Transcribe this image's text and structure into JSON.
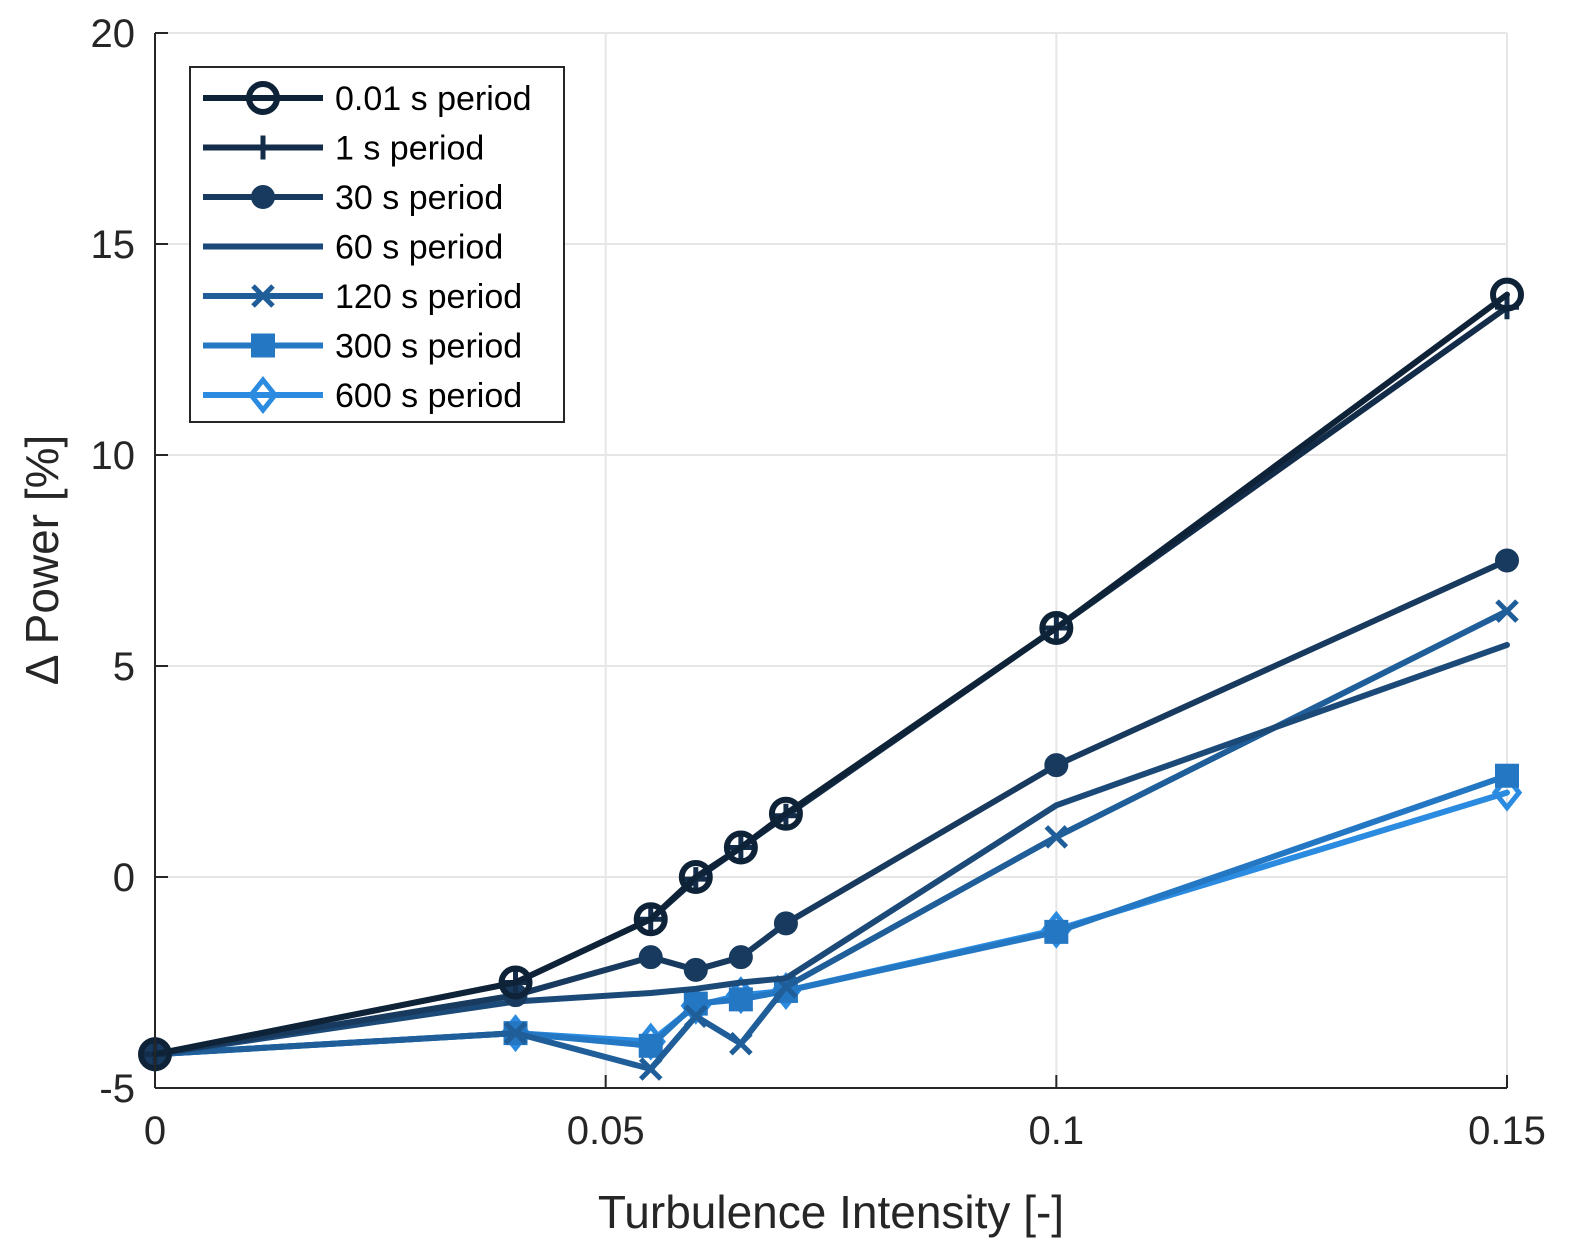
{
  "chart_data": {
    "type": "line",
    "title": "",
    "xlabel": "Turbulence Intensity [-]",
    "ylabel": "Δ Power [%]",
    "xlim": [
      0,
      0.15
    ],
    "ylim": [
      -5,
      20
    ],
    "xticks": [
      0,
      0.05,
      0.1,
      0.15
    ],
    "xtick_labels": [
      "0",
      "0.05",
      "0.1",
      "0.15"
    ],
    "yticks": [
      -5,
      0,
      5,
      10,
      15,
      20
    ],
    "ytick_labels": [
      "-5",
      "0",
      "5",
      "10",
      "15",
      "20"
    ],
    "grid": true,
    "legend_position": "top-left",
    "x": [
      0,
      0.04,
      0.055,
      0.06,
      0.065,
      0.07,
      0.1,
      0.15
    ],
    "series": [
      {
        "name": "0.01 s period",
        "color": "#0f2338",
        "marker": "circle-open",
        "values": [
          -4.2,
          -2.5,
          -1.0,
          0.0,
          0.7,
          1.5,
          5.9,
          13.8
        ]
      },
      {
        "name": "1 s period",
        "color": "#122c49",
        "marker": "plus",
        "values": [
          -4.2,
          -2.5,
          -1.0,
          -0.05,
          0.7,
          1.45,
          5.9,
          13.5
        ]
      },
      {
        "name": "30 s period",
        "color": "#183a5e",
        "marker": "circle-filled",
        "values": [
          -4.2,
          -2.8,
          -1.9,
          -2.2,
          -1.9,
          -1.1,
          2.65,
          7.5
        ]
      },
      {
        "name": "60 s period",
        "color": "#1c4a78",
        "marker": "none",
        "values": [
          -4.2,
          -2.95,
          -2.75,
          -2.65,
          -2.5,
          -2.4,
          1.7,
          5.5
        ]
      },
      {
        "name": "120 s period",
        "color": "#1f5e99",
        "marker": "x",
        "values": [
          -4.2,
          -3.7,
          -4.55,
          -3.3,
          -3.95,
          -2.6,
          0.95,
          6.3
        ]
      },
      {
        "name": "300 s period",
        "color": "#2477c2",
        "marker": "square-filled",
        "values": [
          -4.2,
          -3.7,
          -4.0,
          -3.0,
          -2.9,
          -2.7,
          -1.3,
          2.4
        ]
      },
      {
        "name": "600 s period",
        "color": "#2a8be0",
        "marker": "diamond-open",
        "values": [
          -4.2,
          -3.7,
          -3.9,
          -3.05,
          -2.8,
          -2.7,
          -1.25,
          2.0
        ]
      }
    ]
  }
}
